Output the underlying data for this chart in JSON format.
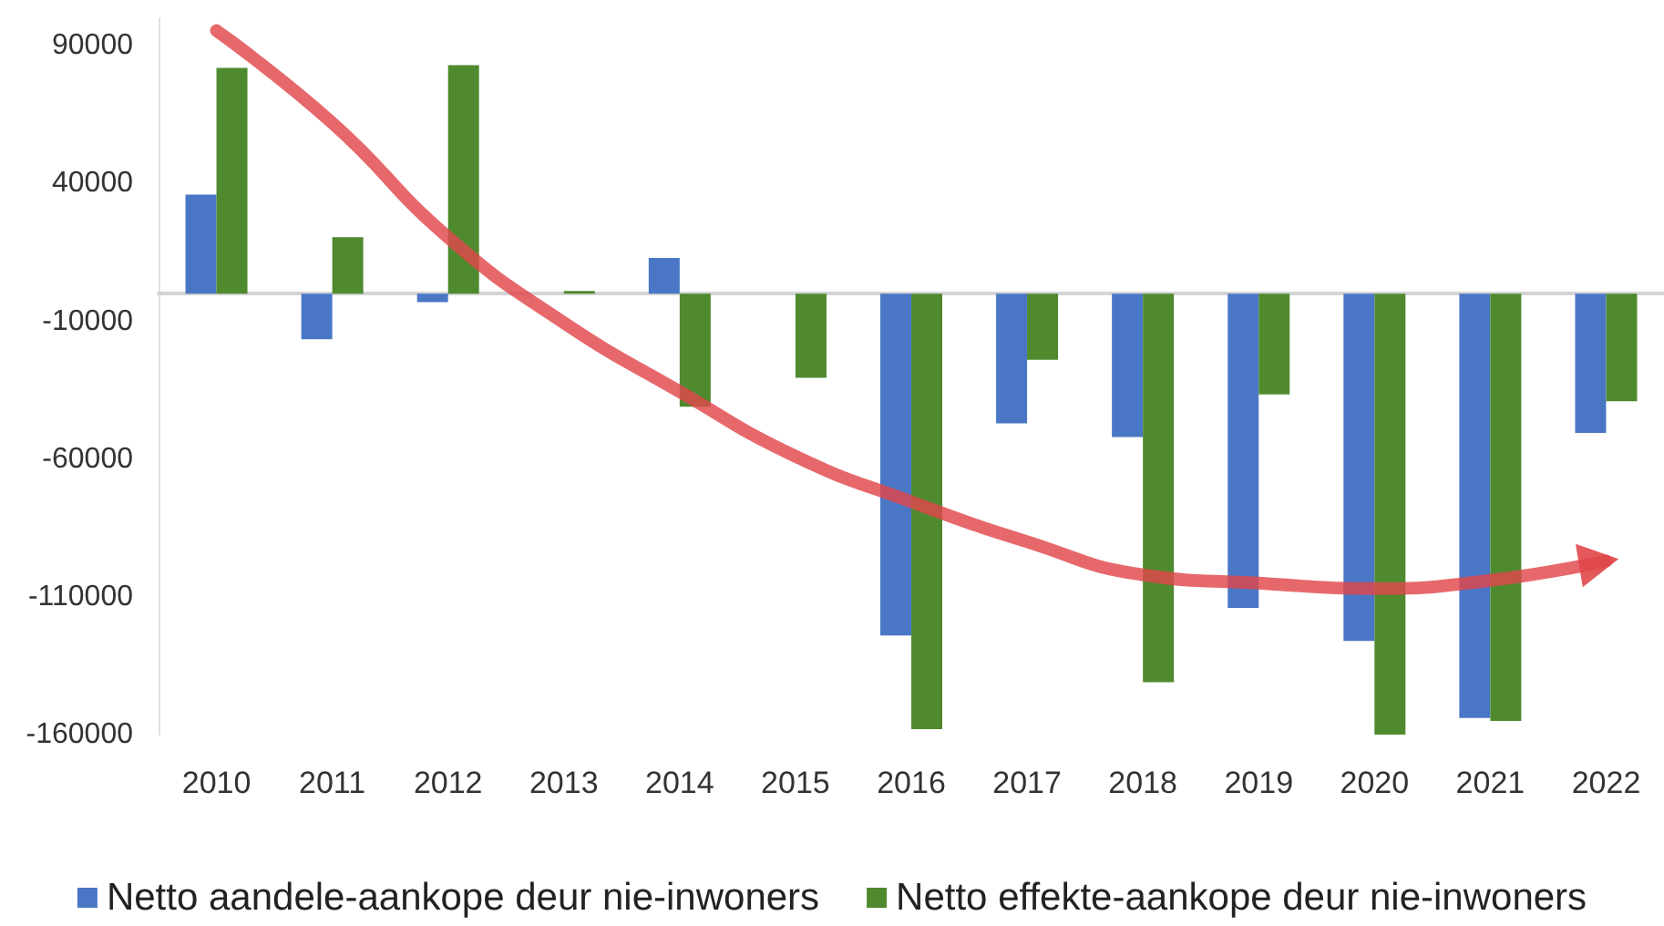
{
  "chart_data": {
    "type": "bar",
    "categories": [
      "2010",
      "2011",
      "2012",
      "2013",
      "2014",
      "2015",
      "2016",
      "2017",
      "2018",
      "2019",
      "2020",
      "2021",
      "2022"
    ],
    "series": [
      {
        "name": "Netto aandele-aankope deur nie-inwoners",
        "color": "#4a77c5",
        "values": [
          36000,
          -16500,
          -3000,
          0,
          13000,
          0,
          -124000,
          -47000,
          -52000,
          -114000,
          -126000,
          -154000,
          -50500
        ]
      },
      {
        "name": "Netto effekte-aankope deur nie-inwoners",
        "color": "#4f8a2f",
        "values": [
          82000,
          20500,
          83000,
          1000,
          -41000,
          -30500,
          -158000,
          -24000,
          -141000,
          -36500,
          -160000,
          -155000,
          -39000
        ]
      },
      {
        "type": "line",
        "color": "#e0474a",
        "values": [
          95500,
          62000,
          20500,
          -10500,
          -35500,
          -59000,
          -75500,
          -90000,
          -102000,
          -105000,
          -107000,
          -104000,
          -97000
        ]
      }
    ],
    "ylim": [
      -160000,
      100000
    ],
    "yticks": [
      -160000,
      -110000,
      -60000,
      -10000,
      40000,
      90000
    ],
    "grid": false,
    "legend": "bottom"
  }
}
